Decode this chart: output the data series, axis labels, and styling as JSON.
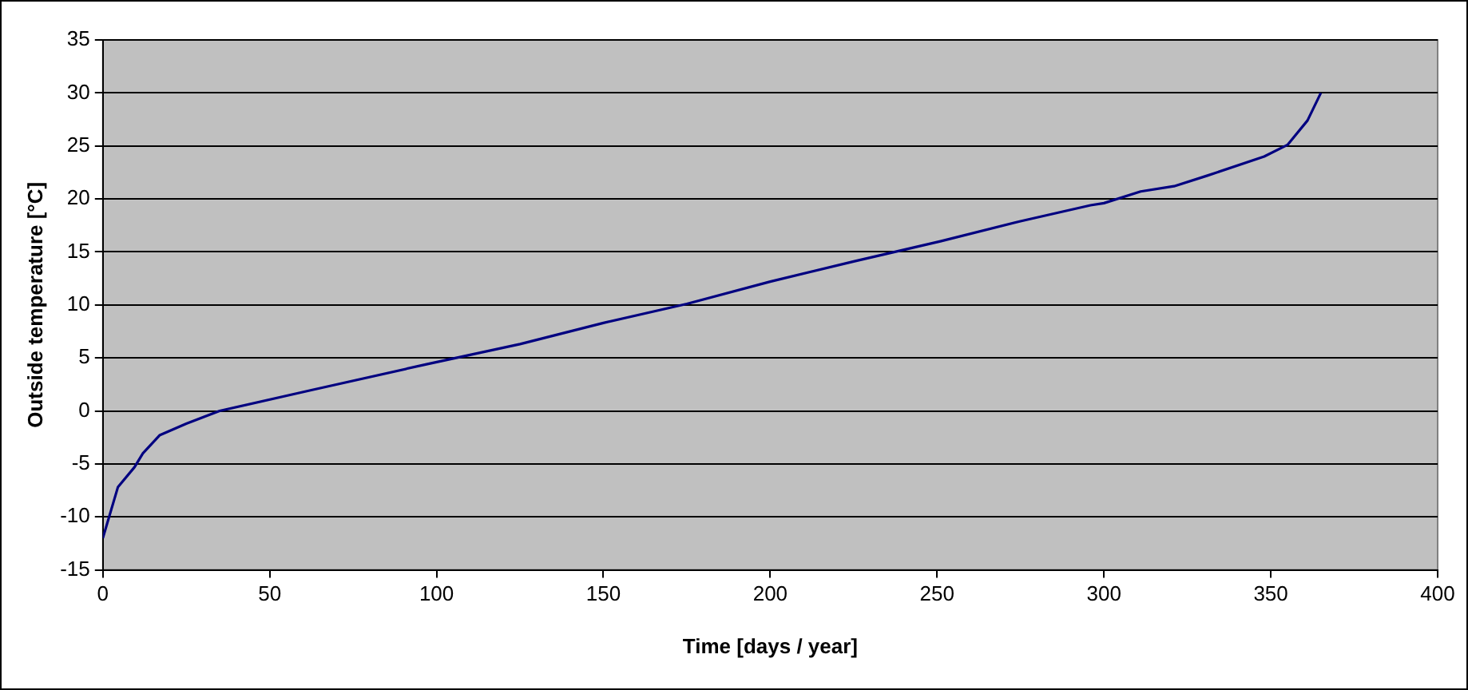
{
  "chart_data": {
    "type": "line",
    "xlabel": "Time [days / year]",
    "ylabel": "Outside temperature [°C]",
    "x": [
      0,
      4.5,
      9.5,
      12,
      17,
      25,
      35,
      63,
      97,
      125,
      150,
      175,
      200,
      225,
      251,
      275,
      296,
      300,
      311,
      321,
      331,
      348,
      355,
      361,
      365
    ],
    "series": [
      {
        "color": "#000080",
        "values": [
          -12,
          -7.2,
          -5.3,
          -4,
          -2.3,
          -1.2,
          0,
          2,
          4.4,
          6.3,
          8.3,
          10.1,
          12.2,
          14.1,
          16,
          17.9,
          19.4,
          19.6,
          20.7,
          21.2,
          22.2,
          24,
          25.1,
          27.4,
          30
        ]
      }
    ],
    "xlim": [
      0,
      400
    ],
    "xticks": [
      0,
      50,
      100,
      150,
      200,
      250,
      300,
      350,
      400
    ],
    "ylim": [
      -15,
      35
    ],
    "yticks": [
      -15,
      -10,
      -5,
      0,
      5,
      10,
      15,
      20,
      25,
      30,
      35
    ],
    "grid": "y",
    "legend": false,
    "marker": "none",
    "line_style": "solid"
  }
}
